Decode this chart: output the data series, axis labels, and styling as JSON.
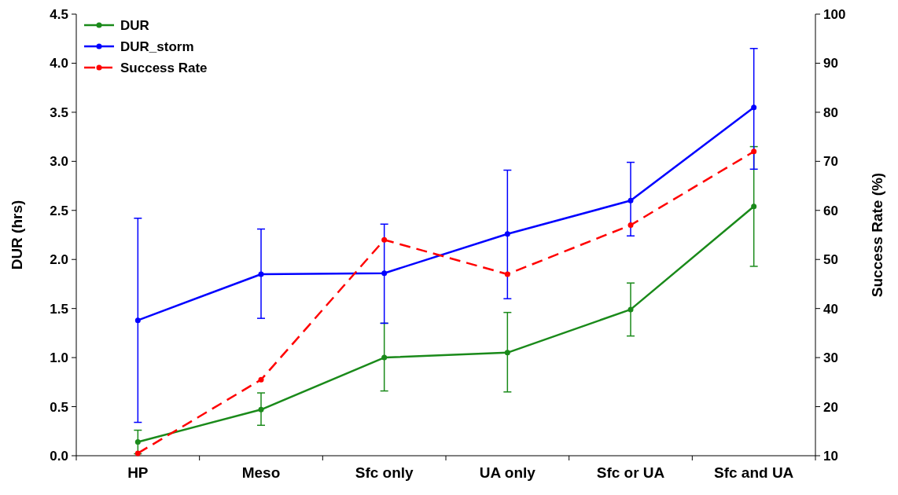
{
  "chart_data": {
    "type": "line",
    "ylabel": "DUR (hrs)",
    "y2label": "Success Rate (%)",
    "categories": [
      "HP",
      "Meso",
      "Sfc only",
      "UA only",
      "Sfc or UA",
      "Sfc and UA"
    ],
    "series": [
      {
        "name": "DUR",
        "color": "#1a8a1a",
        "values": [
          0.14,
          0.47,
          1.0,
          1.05,
          1.49,
          2.54
        ],
        "errors": [
          [
            0.02,
            0.26
          ],
          [
            0.31,
            0.64
          ],
          [
            0.66,
            1.35
          ],
          [
            0.65,
            1.46
          ],
          [
            1.22,
            1.76
          ],
          [
            1.93,
            3.15
          ]
        ]
      },
      {
        "name": "DUR_storm",
        "color": "#0000ff",
        "values": [
          1.38,
          1.85,
          1.86,
          2.26,
          2.6,
          3.55
        ],
        "errors": [
          [
            0.34,
            2.42
          ],
          [
            1.4,
            2.31
          ],
          [
            1.35,
            2.36
          ],
          [
            1.6,
            2.91
          ],
          [
            2.24,
            2.99
          ],
          [
            2.92,
            4.15
          ]
        ]
      },
      {
        "name": "Success Rate",
        "color": "#ff0000",
        "axis": "y2",
        "line_style": "dashed",
        "values": [
          10.5,
          25.5,
          54,
          47,
          57,
          72
        ]
      }
    ],
    "ylim": [
      0,
      4.5
    ],
    "yticks": [
      {
        "value": 0,
        "label": "0.0"
      },
      {
        "value": 0.5,
        "label": "0.5"
      },
      {
        "value": 1,
        "label": "1.0"
      },
      {
        "value": 1.5,
        "label": "1.5"
      },
      {
        "value": 2,
        "label": "2.0"
      },
      {
        "value": 2.5,
        "label": "2.5"
      },
      {
        "value": 3,
        "label": "3.0"
      },
      {
        "value": 3.5,
        "label": "3.5"
      },
      {
        "value": 4,
        "label": "4.0"
      },
      {
        "value": 4.5,
        "label": "4.5"
      }
    ],
    "y2lim": [
      10,
      100
    ],
    "y2ticks": [
      10,
      20,
      30,
      40,
      50,
      60,
      70,
      80,
      90,
      100
    ],
    "marker": "circle",
    "line_style": "solid",
    "grid": false,
    "legend": "top left"
  }
}
